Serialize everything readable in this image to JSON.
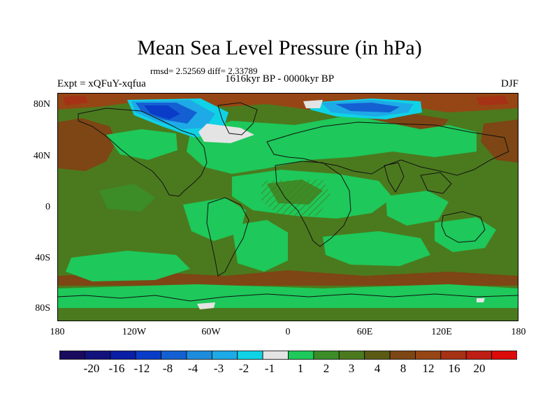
{
  "title": "Mean Sea Level Pressure (in hPa)",
  "stats": "rmsd= 2.52569  diff= 2.33789",
  "experiment": "Expt = xQFuY-xqfua",
  "period": "1616kyr BP - 0000kyr BP",
  "season": "DJF",
  "lat_labels": [
    "80N",
    "40N",
    "0",
    "40S",
    "80S"
  ],
  "lon_labels": [
    "180",
    "120W",
    "60W",
    "0",
    "60E",
    "120E",
    "180"
  ],
  "colorbar": {
    "colors": [
      "#1a0a5e",
      "#12127d",
      "#0a1fa5",
      "#0a3cc8",
      "#1460d2",
      "#1e8cdc",
      "#1eaae6",
      "#10d2e6",
      "#e4e4e4",
      "#1ec85a",
      "#3c8c28",
      "#4b7a1e",
      "#5a5a14",
      "#7d4614",
      "#964614",
      "#a53214",
      "#be1e14",
      "#dc0a0a"
    ],
    "labels": [
      "-20",
      "-16",
      "-12",
      "-8",
      "-4",
      "-3",
      "-2",
      "-1",
      "1",
      "2",
      "3",
      "4",
      "8",
      "12",
      "16",
      "20"
    ]
  },
  "field_colors": {
    "background": "#4b7a1e",
    "green_light": "#1ec85a",
    "mid_green": "#3c8c28",
    "brown": "#7d4614",
    "dark_brown": "#964614",
    "red": "#a53214",
    "blue_dark": "#0a3cc8",
    "blue_mid": "#1460d2",
    "blue_light": "#1eaae6",
    "cyan": "#10d2e6",
    "near_zero": "#e4e4e4",
    "coast": "#111111"
  }
}
